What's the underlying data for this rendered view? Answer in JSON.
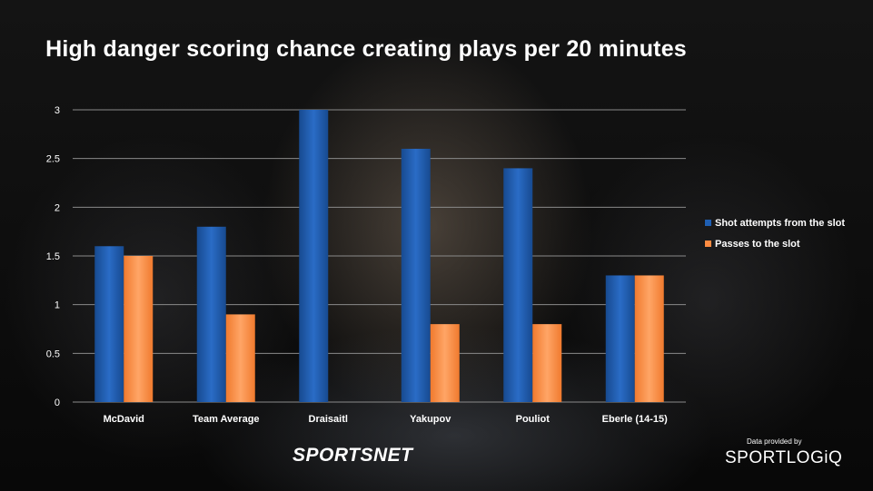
{
  "chart_data": {
    "type": "bar",
    "title": "High danger scoring chance creating plays per 20 minutes",
    "categories": [
      "McDavid",
      "Team Average",
      "Draisaitl",
      "Yakupov",
      "Pouliot",
      "Eberle (14-15)"
    ],
    "series": [
      {
        "name": "Shot attempts from the slot",
        "values": [
          1.6,
          1.8,
          3.0,
          2.6,
          2.4,
          1.3
        ]
      },
      {
        "name": "Passes to the slot",
        "values": [
          1.5,
          0.9,
          0.0,
          0.8,
          0.8,
          1.3
        ]
      }
    ],
    "y_ticks": [
      "0",
      "0.5",
      "1",
      "1.5",
      "2",
      "2.5",
      "3"
    ],
    "ylim": [
      0,
      3
    ],
    "xlabel": "",
    "ylabel": "",
    "grid": true,
    "legend_position": "right"
  },
  "colors": {
    "series_1": "#1f5fb3",
    "series_2": "#ff8c42",
    "gridline": "#8a8a8a",
    "text": "#ffffff"
  },
  "footer": {
    "brand": "SPORTSNET",
    "credit_label": "Data provided by",
    "credit_logo": "SPORTLOGiQ"
  }
}
